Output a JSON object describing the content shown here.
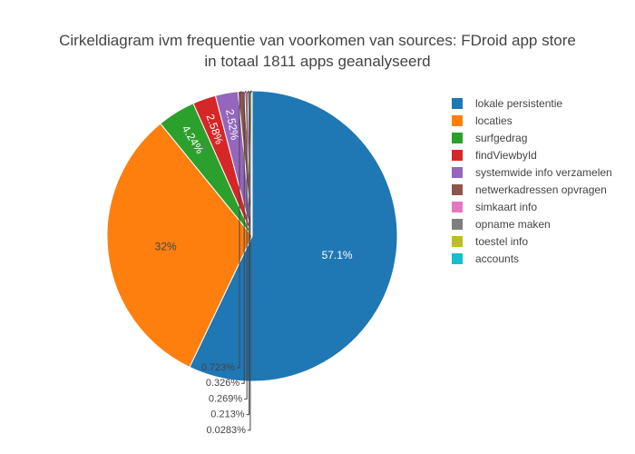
{
  "chart_data": {
    "type": "pie",
    "title": "Cirkeldiagram ivm frequentie van voorkomen van sources: FDroid app store",
    "subtitle": "in totaal 1811 apps geanalyseerd",
    "legend_position": "right",
    "slices": [
      {
        "label": "lokale persistentie",
        "value": 57.1,
        "display": "57.1%",
        "color": "#1f77b4",
        "text_color": "#ffffff"
      },
      {
        "label": "locaties",
        "value": 32,
        "display": "32%",
        "color": "#ff7f0e",
        "text_color": "#444444"
      },
      {
        "label": "surfgedrag",
        "value": 4.24,
        "display": "4.24%",
        "color": "#2ca02c",
        "text_color": "#ffffff"
      },
      {
        "label": "findViewbyId",
        "value": 2.58,
        "display": "2.58%",
        "color": "#d62728",
        "text_color": "#ffffff"
      },
      {
        "label": "systemwide info verzamelen",
        "value": 2.52,
        "display": "2.52%",
        "color": "#9467bd",
        "text_color": "#ffffff"
      },
      {
        "label": "netwerkadressen opvragen",
        "value": 0.723,
        "display": "0.723%",
        "color": "#8c564b",
        "text_color": "#444444"
      },
      {
        "label": "simkaart info",
        "value": 0.326,
        "display": "0.326%",
        "color": "#e377c2",
        "text_color": "#444444"
      },
      {
        "label": "opname maken",
        "value": 0.269,
        "display": "0.269%",
        "color": "#7f7f7f",
        "text_color": "#444444"
      },
      {
        "label": "toestel info",
        "value": 0.213,
        "display": "0.213%",
        "color": "#bcbd22",
        "text_color": "#444444"
      },
      {
        "label": "accounts",
        "value": 0.0283,
        "display": "0.0283%",
        "color": "#17becf",
        "text_color": "#444444"
      }
    ]
  }
}
